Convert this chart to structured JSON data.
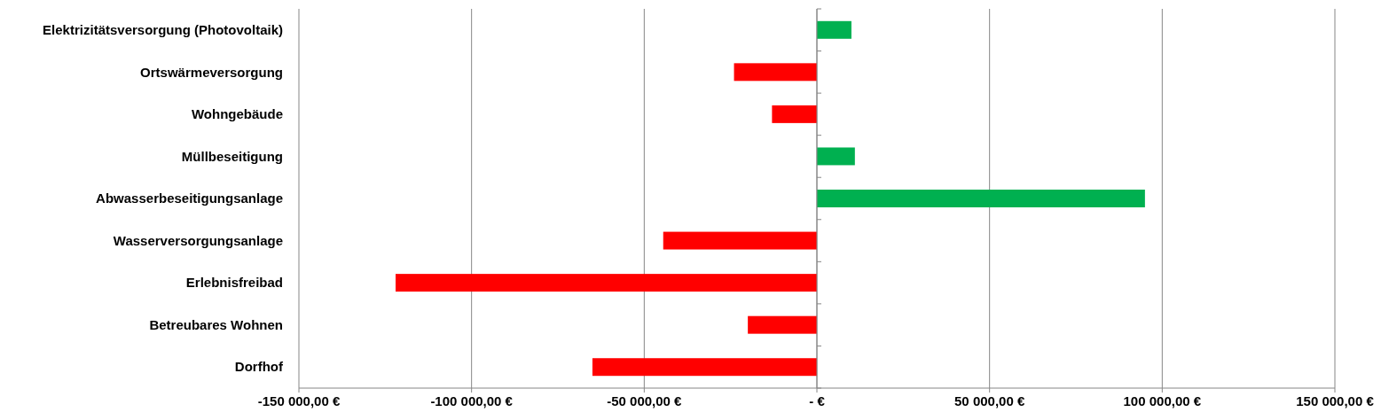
{
  "chart_data": {
    "type": "bar",
    "orientation": "horizontal",
    "categories": [
      "Elektrizitätsversorgung (Photovoltaik)",
      "Ortswärmeversorgung",
      "Wohngebäude",
      "Müllbeseitigung",
      "Abwasserbeseitigungsanlage",
      "Wasserversorgungsanlage",
      "Erlebnisfreibad",
      "Betreubares Wohnen",
      "Dorfhof"
    ],
    "values": [
      10000,
      -24000,
      -13000,
      11000,
      95000,
      -44500,
      -122000,
      -20000,
      -65000
    ],
    "colors": [
      "#00b050",
      "#ff0000",
      "#ff0000",
      "#00b050",
      "#00b050",
      "#ff0000",
      "#ff0000",
      "#ff0000",
      "#ff0000"
    ],
    "xlim": [
      -150000,
      150000
    ],
    "xticks": [
      {
        "value": -150000,
        "label": "-150 000,00 €"
      },
      {
        "value": -100000,
        "label": "-100 000,00 €"
      },
      {
        "value": -50000,
        "label": "-50 000,00 €"
      },
      {
        "value": 0,
        "label": "-  €"
      },
      {
        "value": 50000,
        "label": "50 000,00 €"
      },
      {
        "value": 100000,
        "label": "100 000,00 €"
      },
      {
        "value": 150000,
        "label": "150 000,00 €"
      }
    ],
    "grid": "x"
  }
}
